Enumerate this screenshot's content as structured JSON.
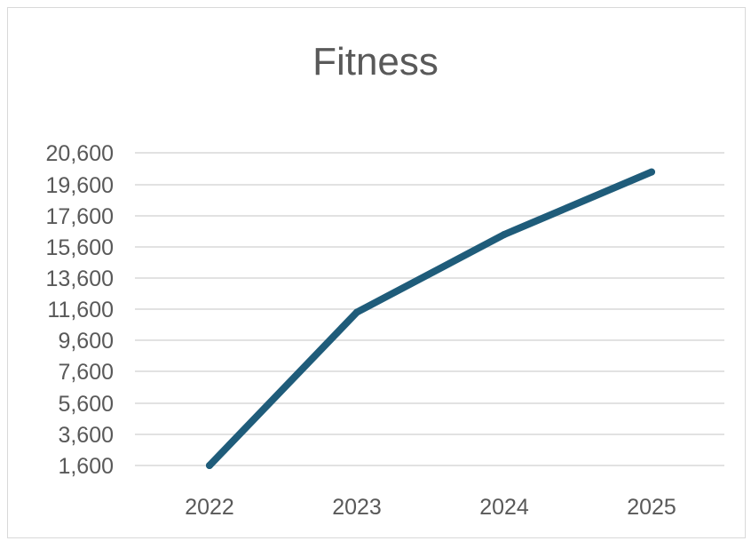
{
  "chart_data": {
    "type": "line",
    "title": "Fitness",
    "xlabel": "",
    "ylabel": "",
    "categories": [
      "2022",
      "2023",
      "2024",
      "2025"
    ],
    "series": [
      {
        "values": [
          1600,
          11400,
          16400,
          20000
        ]
      }
    ],
    "y_ticks": [
      1600,
      3600,
      5600,
      7600,
      9600,
      11600,
      13600,
      15600,
      17600,
      19600,
      20600
    ],
    "y_tick_labels": [
      "1,600",
      "3,600",
      "5,600",
      "7,600",
      "9,600",
      "11,600",
      "13,600",
      "15,600",
      "17,600",
      "19,600",
      "20,600"
    ],
    "grid": true,
    "legend": "none",
    "line_color": "#1f5c7a",
    "grid_color": "#d9d9d9"
  }
}
